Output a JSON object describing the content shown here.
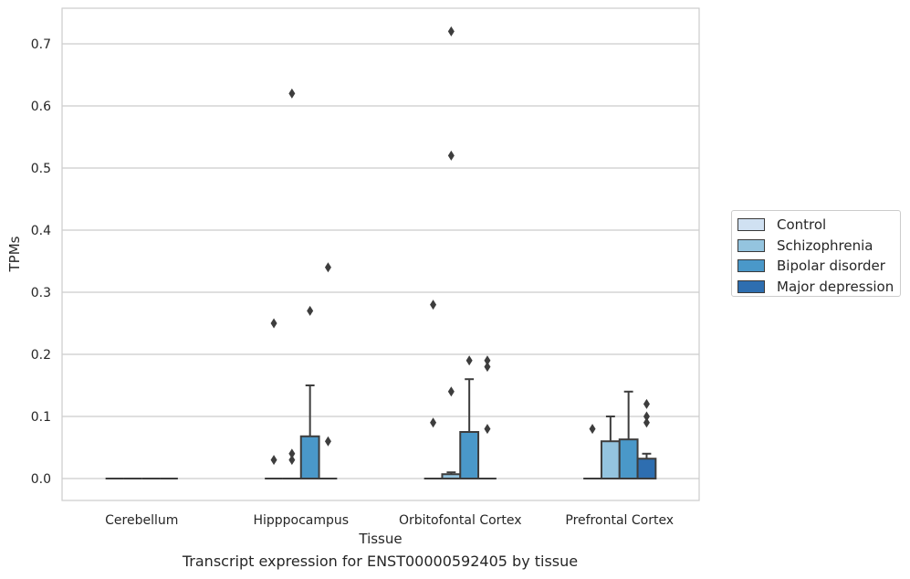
{
  "chart_data": {
    "type": "box",
    "title": "",
    "caption": "Transcript expression for ENST00000592405 by tissue",
    "xlabel": "Tissue",
    "ylabel": "TPMs",
    "ylim": [
      -0.035,
      0.758
    ],
    "yticks": [
      "0.0",
      "0.1",
      "0.2",
      "0.3",
      "0.4",
      "0.5",
      "0.6",
      "0.7"
    ],
    "categories": [
      "Cerebellum",
      "Hipppocampus",
      "Orbitofontal Cortex",
      "Prefrontal Cortex"
    ],
    "grid": "horizontal",
    "legend_position": "right",
    "series": [
      {
        "name": "Control",
        "color": "#d0e1f2",
        "boxes": [
          {
            "min": 0,
            "q1": 0,
            "median": 0,
            "q3": 0,
            "max": 0,
            "outliers": []
          },
          {
            "min": 0,
            "q1": 0,
            "median": 0,
            "q3": 0,
            "max": 0,
            "outliers": [
              0.25,
              0.03
            ]
          },
          {
            "min": 0,
            "q1": 0,
            "median": 0,
            "q3": 0,
            "max": 0,
            "outliers": [
              0.28,
              0.09
            ]
          },
          {
            "min": 0,
            "q1": 0,
            "median": 0,
            "q3": 0,
            "max": 0,
            "outliers": [
              0.08
            ]
          }
        ]
      },
      {
        "name": "Schizophrenia",
        "color": "#94c4df",
        "boxes": [
          {
            "min": 0,
            "q1": 0,
            "median": 0,
            "q3": 0,
            "max": 0,
            "outliers": []
          },
          {
            "min": 0,
            "q1": 0,
            "median": 0,
            "q3": 0,
            "max": 0,
            "outliers": [
              0.62,
              0.04,
              0.03
            ]
          },
          {
            "min": 0,
            "q1": 0,
            "median": 0,
            "q3": 0.007,
            "max": 0.01,
            "outliers": [
              0.72,
              0.52,
              0.14
            ]
          },
          {
            "min": 0,
            "q1": 0,
            "median": 0,
            "q3": 0.06,
            "max": 0.1,
            "outliers": []
          }
        ]
      },
      {
        "name": "Bipolar disorder",
        "color": "#4a98c9",
        "boxes": [
          {
            "min": 0,
            "q1": 0,
            "median": 0,
            "q3": 0,
            "max": 0,
            "outliers": []
          },
          {
            "min": 0,
            "q1": 0,
            "median": 0,
            "q3": 0.068,
            "max": 0.15,
            "outliers": [
              0.27
            ]
          },
          {
            "min": 0,
            "q1": 0,
            "median": 0,
            "q3": 0.075,
            "max": 0.16,
            "outliers": [
              0.19
            ]
          },
          {
            "min": 0,
            "q1": 0,
            "median": 0,
            "q3": 0.063,
            "max": 0.14,
            "outliers": []
          }
        ]
      },
      {
        "name": "Major depression",
        "color": "#2e6eb0",
        "boxes": [
          {
            "min": 0,
            "q1": 0,
            "median": 0,
            "q3": 0,
            "max": 0,
            "outliers": []
          },
          {
            "min": 0,
            "q1": 0,
            "median": 0,
            "q3": 0,
            "max": 0,
            "outliers": [
              0.34,
              0.06
            ]
          },
          {
            "min": 0,
            "q1": 0,
            "median": 0,
            "q3": 0,
            "max": 0,
            "outliers": [
              0.19,
              0.18,
              0.08
            ]
          },
          {
            "min": 0,
            "q1": 0,
            "median": 0,
            "q3": 0.032,
            "max": 0.04,
            "outliers": [
              0.12,
              0.1,
              0.09
            ]
          }
        ]
      }
    ]
  }
}
